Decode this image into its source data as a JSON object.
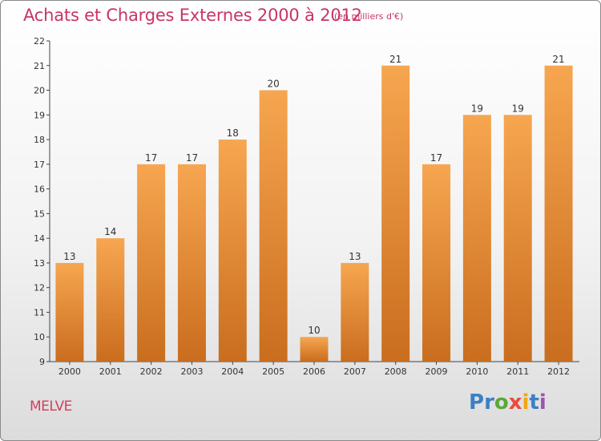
{
  "chart_data": {
    "type": "bar",
    "title": "Achats et Charges Externes 2000 à 2012",
    "unit_label": "(en milliers d'€)",
    "categories": [
      "2000",
      "2001",
      "2002",
      "2003",
      "2004",
      "2005",
      "2006",
      "2007",
      "2008",
      "2009",
      "2010",
      "2011",
      "2012"
    ],
    "values": [
      13,
      14,
      17,
      17,
      18,
      20,
      10,
      13,
      21,
      17,
      19,
      19,
      21
    ],
    "ylim": [
      9,
      22
    ],
    "yticks": [
      9,
      10,
      11,
      12,
      13,
      14,
      15,
      16,
      17,
      18,
      19,
      20,
      21,
      22
    ],
    "grid": false,
    "bar_color_top": "#f7a650",
    "bar_color_bottom": "#c96d1e"
  },
  "place_name": "MELVE",
  "logo": {
    "letters": [
      "P",
      "r",
      "o",
      "x",
      "i",
      "t",
      "i"
    ],
    "colors": [
      "#3d7fc4",
      "#3d7fc4",
      "#5aa83a",
      "#e84c3d",
      "#f2a516",
      "#3d7fc4",
      "#9c55b0"
    ]
  }
}
